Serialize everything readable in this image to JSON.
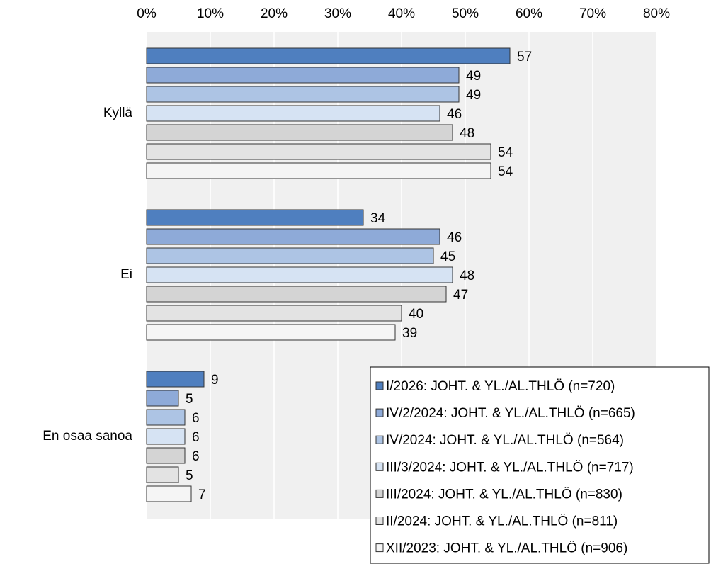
{
  "chart_data": {
    "type": "hbar",
    "categories": [
      "Kyllä",
      "Ei",
      "En osaa sanoa"
    ],
    "series": [
      {
        "name": "I/2026: JOHT. & YL./AL.THLÖ (n=720)",
        "color": "#4f7fbf",
        "values": [
          57,
          34,
          9
        ]
      },
      {
        "name": "IV/2/2024: JOHT. & YL./AL.THLÖ (n=665)",
        "color": "#8eaad8",
        "values": [
          49,
          46,
          5
        ]
      },
      {
        "name": "IV/2024: JOHT. & YL./AL.THLÖ (n=564)",
        "color": "#adc4e4",
        "values": [
          49,
          45,
          6
        ]
      },
      {
        "name": "III/3/2024: JOHT. & YL./AL.THLÖ (n=717)",
        "color": "#d6e3f3",
        "values": [
          46,
          48,
          6
        ]
      },
      {
        "name": "III/2024: JOHT. & YL./AL.THLÖ (n=830)",
        "color": "#d4d4d4",
        "values": [
          48,
          47,
          6
        ]
      },
      {
        "name": "II/2024: JOHT. & YL./AL.THLÖ (n=811)",
        "color": "#e3e3e3",
        "values": [
          54,
          40,
          5
        ]
      },
      {
        "name": "XII/2023: JOHT. & YL./AL.THLÖ (n=906)",
        "color": "#f5f5f5",
        "values": [
          54,
          39,
          7
        ]
      }
    ],
    "xlim": [
      0,
      80
    ],
    "xticks": [
      {
        "value": 0,
        "label": "0%"
      },
      {
        "value": 10,
        "label": "10%"
      },
      {
        "value": 20,
        "label": "20%"
      },
      {
        "value": 30,
        "label": "30%"
      },
      {
        "value": 40,
        "label": "40%"
      },
      {
        "value": 50,
        "label": "50%"
      },
      {
        "value": 60,
        "label": "60%"
      },
      {
        "value": 70,
        "label": "70%"
      },
      {
        "value": 80,
        "label": "80%"
      }
    ],
    "grid": true
  }
}
